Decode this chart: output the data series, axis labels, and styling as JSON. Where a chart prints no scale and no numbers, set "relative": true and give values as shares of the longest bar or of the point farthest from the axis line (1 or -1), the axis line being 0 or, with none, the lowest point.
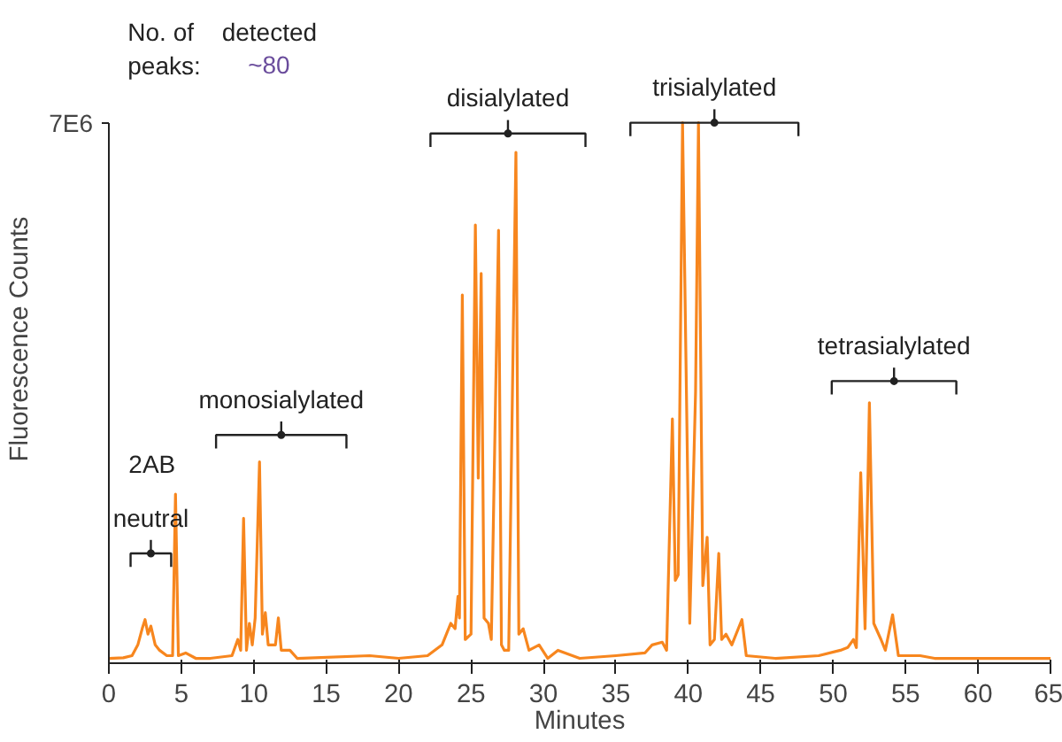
{
  "chart_data": {
    "type": "line",
    "relative": true,
    "xlabel": "Minutes",
    "ylabel": "Fluorescence Counts",
    "xlim": [
      0,
      65
    ],
    "xticks": [
      0,
      5,
      10,
      15,
      20,
      25,
      30,
      35,
      40,
      45,
      50,
      55,
      60,
      65
    ],
    "grid": false,
    "annotations": [
      "7E6",
      "No. of\npeaks:",
      "detected",
      "~80",
      {
        "text": "2AB",
        "x": 4.6,
        "y": 0.31
      },
      {
        "text": "neutral",
        "x": 2.9,
        "y": 0.2
      },
      {
        "text": "monosialylated",
        "x": 11.9,
        "y": 0.42
      },
      {
        "text": "disialylated",
        "x": 27.55,
        "y": 0.98
      },
      {
        "text": "trisialylated",
        "x": 41.8,
        "y": 1.0
      },
      {
        "text": "tetrasialylated",
        "x": 54.2,
        "y": 0.52
      }
    ],
    "series": [
      {
        "color": "#f7861e",
        "x": [
          0,
          1,
          1.6,
          2.0,
          2.3,
          2.5,
          2.7,
          2.9,
          3.2,
          3.5,
          4.0,
          4.4,
          4.6,
          4.8,
          5.3,
          6,
          7,
          8.5,
          8.9,
          9.1,
          9.3,
          9.5,
          9.7,
          9.9,
          10.1,
          10.4,
          10.6,
          10.8,
          11.0,
          11.5,
          11.7,
          11.9,
          12.5,
          13,
          18,
          20,
          22,
          23,
          23.6,
          23.9,
          24.1,
          24.2,
          24.4,
          24.6,
          25.0,
          25.3,
          25.5,
          25.7,
          25.9,
          26.2,
          26.4,
          26.9,
          27.1,
          27.3,
          27.6,
          28.1,
          28.3,
          28.6,
          29,
          29.7,
          30.3,
          31,
          32.5,
          35,
          37,
          37.5,
          38.2,
          38.5,
          38.9,
          39.1,
          39.3,
          39.6,
          40.1,
          40.5,
          40.7,
          41.0,
          41.3,
          41.5,
          41.8,
          42.1,
          42.3,
          42.6,
          43,
          43.7,
          44,
          46,
          49,
          50.5,
          51.0,
          51.4,
          51.6,
          51.9,
          52.2,
          52.5,
          52.8,
          53.3,
          53.6,
          54.1,
          54.5,
          56,
          57,
          60,
          65
        ],
        "values": [
          0.005,
          0.006,
          0.01,
          0.03,
          0.06,
          0.077,
          0.05,
          0.065,
          0.03,
          0.02,
          0.01,
          0.01,
          0.31,
          0.01,
          0.015,
          0.005,
          0.005,
          0.01,
          0.04,
          0.02,
          0.265,
          0.02,
          0.07,
          0.03,
          0.08,
          0.37,
          0.05,
          0.09,
          0.03,
          0.03,
          0.08,
          0.02,
          0.02,
          0.005,
          0.01,
          0.005,
          0.01,
          0.03,
          0.07,
          0.06,
          0.12,
          0.08,
          0.68,
          0.04,
          0.05,
          0.81,
          0.34,
          0.72,
          0.08,
          0.07,
          0.04,
          0.8,
          0.03,
          0.02,
          0.02,
          0.945,
          0.05,
          0.06,
          0.02,
          0.03,
          0.005,
          0.02,
          0.005,
          0.01,
          0.015,
          0.03,
          0.035,
          0.02,
          0.45,
          0.15,
          0.16,
          1.0,
          0.07,
          0.5,
          1.0,
          0.14,
          0.23,
          0.03,
          0.04,
          0.2,
          0.04,
          0.05,
          0.03,
          0.077,
          0.01,
          0.005,
          0.01,
          0.02,
          0.025,
          0.04,
          0.025,
          0.35,
          0.06,
          0.48,
          0.07,
          0.04,
          0.02,
          0.086,
          0.01,
          0.01,
          0.005,
          0.005,
          0.005
        ]
      },
      {
        "type": "scatter",
        "marker": "circle",
        "color": "#222222",
        "x": [
          2.9,
          11.9,
          27.55,
          41.8,
          54.2
        ],
        "values": [
          0.2,
          0.42,
          0.98,
          1.0,
          0.52
        ],
        "xerrors": [
          [
            1.5,
            4.3
          ],
          [
            7.4,
            16.4
          ],
          [
            22.2,
            32.9
          ],
          [
            36.0,
            47.6
          ],
          [
            49.9,
            58.5
          ]
        ]
      }
    ]
  }
}
